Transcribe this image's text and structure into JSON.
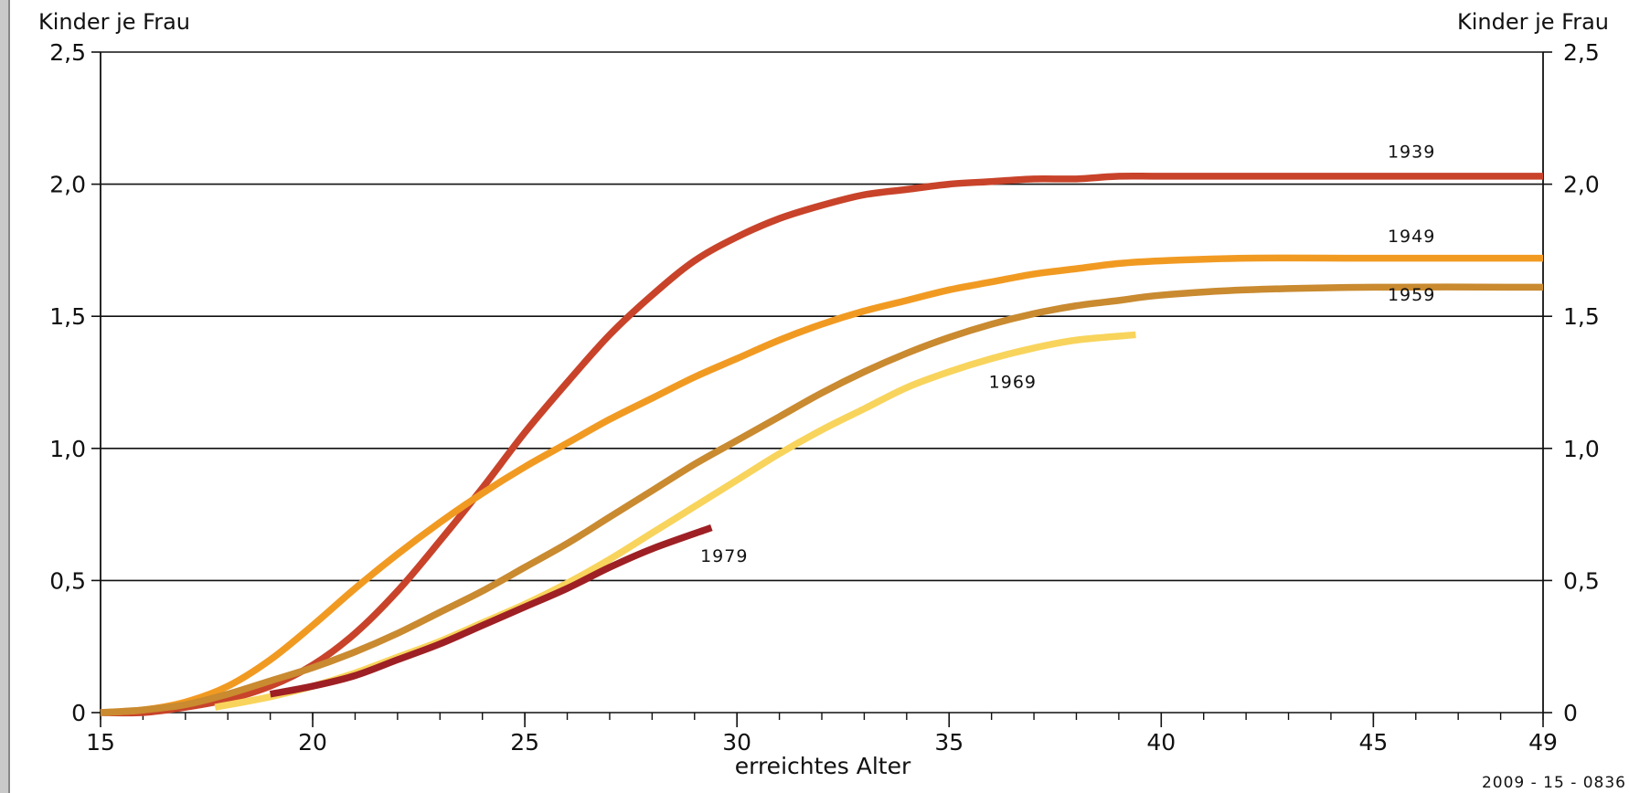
{
  "chart_data": {
    "type": "line",
    "title": "",
    "ylabel_left": "Kinder je Frau",
    "ylabel_right": "Kinder je Frau",
    "xlabel": "erreichtes Alter",
    "source_code": "2009 - 15 - 0836",
    "xlim": [
      15,
      49
    ],
    "ylim": [
      0,
      2.5
    ],
    "x_ticks": [
      15,
      20,
      25,
      30,
      35,
      40,
      45,
      49
    ],
    "y_ticks": [
      {
        "value": 0,
        "label": "0"
      },
      {
        "value": 0.5,
        "label": "0,5"
      },
      {
        "value": 1.0,
        "label": "1,0"
      },
      {
        "value": 1.5,
        "label": "1,5"
      },
      {
        "value": 2.0,
        "label": "2,0"
      },
      {
        "value": 2.5,
        "label": "2,5"
      }
    ],
    "grid": "horizontal",
    "legend": "inline labels",
    "series": [
      {
        "name": "1939",
        "color": "#c8432a",
        "label_at": [
          45.9,
          2.1
        ],
        "x": [
          15,
          16,
          17,
          18,
          19,
          20,
          21,
          22,
          23,
          24,
          25,
          26,
          27,
          28,
          29,
          30,
          31,
          32,
          33,
          34,
          35,
          36,
          37,
          38,
          39,
          40,
          42,
          45,
          49
        ],
        "y": [
          0,
          0,
          0.02,
          0.05,
          0.1,
          0.18,
          0.3,
          0.46,
          0.65,
          0.85,
          1.06,
          1.25,
          1.43,
          1.58,
          1.71,
          1.8,
          1.87,
          1.92,
          1.96,
          1.98,
          2.0,
          2.01,
          2.02,
          2.02,
          2.03,
          2.03,
          2.03,
          2.03,
          2.03
        ]
      },
      {
        "name": "1949",
        "color": "#f19a22",
        "label_at": [
          45.9,
          1.78
        ],
        "x": [
          15,
          16,
          17,
          18,
          19,
          20,
          21,
          22,
          23,
          24,
          25,
          26,
          27,
          28,
          29,
          30,
          31,
          32,
          33,
          34,
          35,
          36,
          37,
          38,
          39,
          40,
          42,
          45,
          49
        ],
        "y": [
          0,
          0.01,
          0.04,
          0.1,
          0.2,
          0.33,
          0.47,
          0.6,
          0.72,
          0.83,
          0.93,
          1.02,
          1.11,
          1.19,
          1.27,
          1.34,
          1.41,
          1.47,
          1.52,
          1.56,
          1.6,
          1.63,
          1.66,
          1.68,
          1.7,
          1.71,
          1.72,
          1.72,
          1.72
        ]
      },
      {
        "name": "1959",
        "color": "#c98a30",
        "label_at": [
          45.9,
          1.56
        ],
        "x": [
          15,
          16,
          17,
          18,
          19,
          20,
          21,
          22,
          23,
          24,
          25,
          26,
          27,
          28,
          29,
          30,
          31,
          32,
          33,
          34,
          35,
          36,
          37,
          38,
          39,
          40,
          42,
          45,
          49
        ],
        "y": [
          0,
          0.01,
          0.03,
          0.07,
          0.12,
          0.17,
          0.23,
          0.3,
          0.38,
          0.46,
          0.55,
          0.64,
          0.74,
          0.84,
          0.94,
          1.03,
          1.12,
          1.21,
          1.29,
          1.36,
          1.42,
          1.47,
          1.51,
          1.54,
          1.56,
          1.58,
          1.6,
          1.61,
          1.61
        ]
      },
      {
        "name": "1969",
        "color": "#f8d45c",
        "label_at": [
          36.5,
          1.23
        ],
        "x": [
          17.7,
          19,
          20,
          21,
          22,
          23,
          24,
          25,
          26,
          27,
          28,
          29,
          30,
          31,
          32,
          33,
          34,
          35,
          36,
          37,
          38,
          39.4
        ],
        "y": [
          0.02,
          0.06,
          0.1,
          0.15,
          0.21,
          0.27,
          0.34,
          0.41,
          0.49,
          0.58,
          0.68,
          0.78,
          0.88,
          0.98,
          1.07,
          1.15,
          1.23,
          1.29,
          1.34,
          1.38,
          1.41,
          1.43
        ]
      },
      {
        "name": "1979",
        "color": "#9e2024",
        "label_at": [
          29.7,
          0.57
        ],
        "x": [
          19,
          20,
          21,
          22,
          23,
          24,
          25,
          26,
          27,
          28,
          29.4
        ],
        "y": [
          0.07,
          0.1,
          0.14,
          0.2,
          0.26,
          0.33,
          0.4,
          0.47,
          0.55,
          0.62,
          0.7
        ]
      }
    ]
  }
}
